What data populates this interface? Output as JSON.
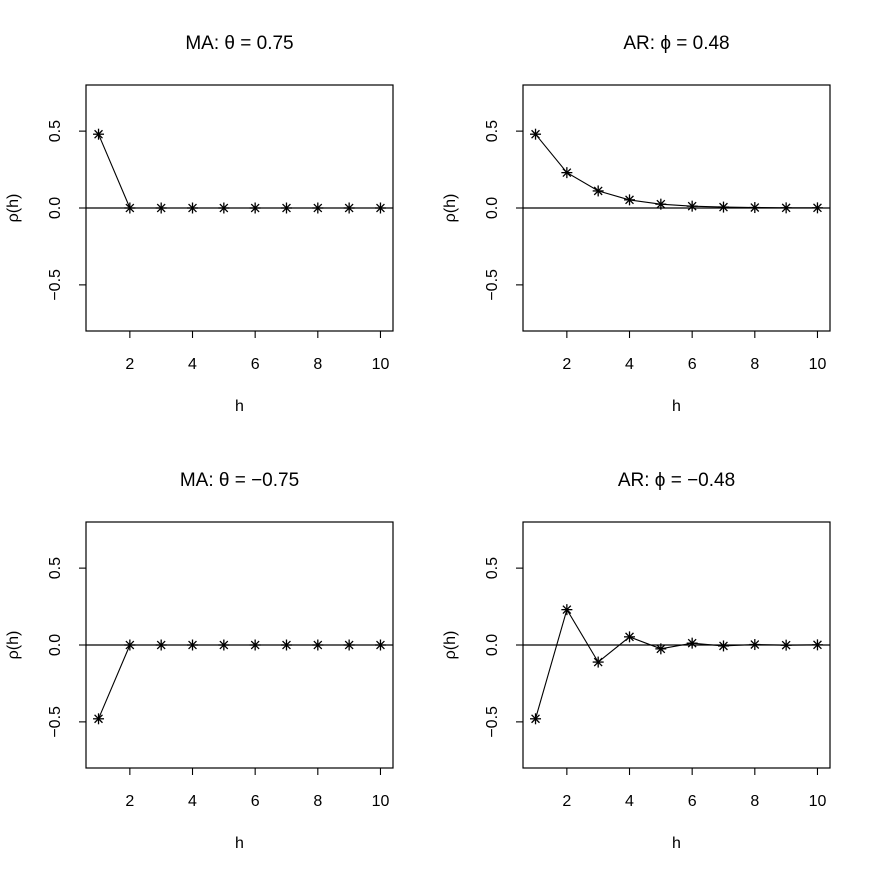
{
  "chart_data": [
    {
      "type": "line",
      "title": "MA: θ = 0.75",
      "xlabel": "h",
      "ylabel": "ρ(h)",
      "xlim": [
        0.6,
        10.4
      ],
      "ylim": [
        -0.8,
        0.8
      ],
      "x_ticks": [
        "2",
        "4",
        "6",
        "8",
        "10"
      ],
      "y_ticks": [
        "-0.5",
        "0.0",
        "0.5"
      ],
      "reference_line": 0,
      "marker": "*",
      "x": [
        1,
        2,
        3,
        4,
        5,
        6,
        7,
        8,
        9,
        10
      ],
      "values": [
        0.48,
        0,
        0,
        0,
        0,
        0,
        0,
        0,
        0,
        0
      ]
    },
    {
      "type": "line",
      "title": "AR: ϕ = 0.48",
      "xlabel": "h",
      "ylabel": "ρ(h)",
      "xlim": [
        0.6,
        10.4
      ],
      "ylim": [
        -0.8,
        0.8
      ],
      "x_ticks": [
        "2",
        "4",
        "6",
        "8",
        "10"
      ],
      "y_ticks": [
        "-0.5",
        "0.0",
        "0.5"
      ],
      "reference_line": 0,
      "marker": "*",
      "x": [
        1,
        2,
        3,
        4,
        5,
        6,
        7,
        8,
        9,
        10
      ],
      "values": [
        0.48,
        0.23,
        0.111,
        0.053,
        0.025,
        0.012,
        0.006,
        0.003,
        0.001,
        0.001
      ]
    },
    {
      "type": "line",
      "title": "MA: θ = −0.75",
      "xlabel": "h",
      "ylabel": "ρ(h)",
      "xlim": [
        0.6,
        10.4
      ],
      "ylim": [
        -0.8,
        0.8
      ],
      "x_ticks": [
        "2",
        "4",
        "6",
        "8",
        "10"
      ],
      "y_ticks": [
        "-0.5",
        "0.0",
        "0.5"
      ],
      "reference_line": 0,
      "marker": "*",
      "x": [
        1,
        2,
        3,
        4,
        5,
        6,
        7,
        8,
        9,
        10
      ],
      "values": [
        -0.48,
        0,
        0,
        0,
        0,
        0,
        0,
        0,
        0,
        0
      ]
    },
    {
      "type": "line",
      "title": "AR: ϕ = −0.48",
      "xlabel": "h",
      "ylabel": "ρ(h)",
      "xlim": [
        0.6,
        10.4
      ],
      "ylim": [
        -0.8,
        0.8
      ],
      "x_ticks": [
        "2",
        "4",
        "6",
        "8",
        "10"
      ],
      "y_ticks": [
        "-0.5",
        "0.0",
        "0.5"
      ],
      "reference_line": 0,
      "marker": "*",
      "x": [
        1,
        2,
        3,
        4,
        5,
        6,
        7,
        8,
        9,
        10
      ],
      "values": [
        -0.48,
        0.23,
        -0.111,
        0.053,
        -0.025,
        0.012,
        -0.006,
        0.003,
        -0.001,
        0.001
      ]
    }
  ]
}
